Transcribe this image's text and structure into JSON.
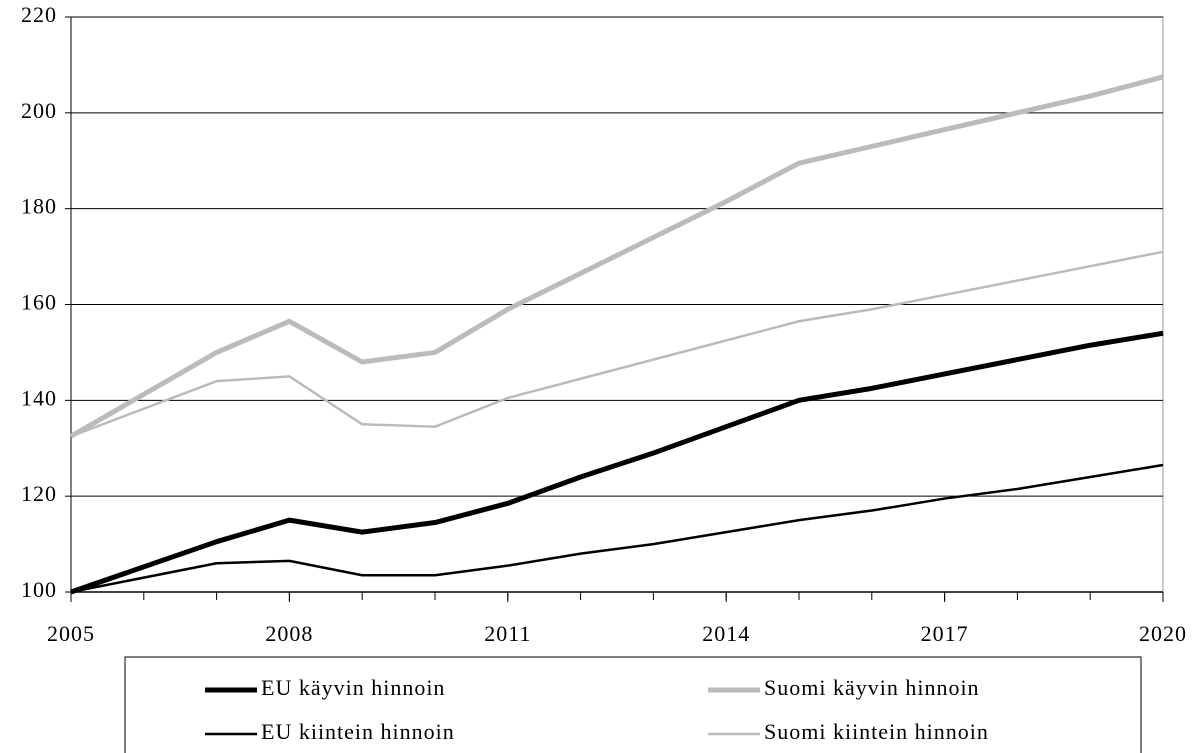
{
  "chart_data": {
    "type": "line",
    "x": [
      2005,
      2007,
      2008,
      2009,
      2010,
      2011,
      2012,
      2013,
      2014,
      2015,
      2016,
      2017,
      2018,
      2019,
      2020
    ],
    "series": [
      {
        "name": "EU käyvin hinnoin",
        "color": "#000000",
        "line_width": 5,
        "values": [
          100,
          110.5,
          115,
          112.5,
          114.5,
          118.5,
          124,
          129,
          134.5,
          140,
          142.5,
          145.5,
          148.5,
          151.5,
          154
        ]
      },
      {
        "name": "Suomi käyvin hinnoin",
        "color": "#bbbbbb",
        "line_width": 5,
        "values": [
          132.5,
          150,
          156.5,
          148,
          150,
          159,
          166.5,
          174,
          181.5,
          189.5,
          193,
          196.5,
          200,
          203.5,
          207.5
        ]
      },
      {
        "name": "EU kiintein hinnoin",
        "color": "#000000",
        "line_width": 2.5,
        "values": [
          100,
          106,
          106.5,
          103.5,
          103.5,
          105.5,
          108,
          110,
          112.5,
          115,
          117,
          119.5,
          121.5,
          124,
          126.5
        ]
      },
      {
        "name": "Suomi kiintein hinnoin",
        "color": "#bbbbbb",
        "line_width": 2.5,
        "values": [
          132.5,
          144,
          145,
          135,
          134.5,
          140.5,
          144.5,
          148.5,
          152.5,
          156.5,
          159,
          162,
          165,
          168,
          171
        ]
      }
    ],
    "xlim": [
      2005,
      2020
    ],
    "xticks": [
      2005,
      2008,
      2011,
      2014,
      2017,
      2020
    ],
    "xminor_ticks": [
      2005,
      2006,
      2007,
      2008,
      2009,
      2010,
      2011,
      2012,
      2013,
      2014,
      2015,
      2016,
      2017,
      2018,
      2019,
      2020
    ],
    "ylim": [
      100,
      220
    ],
    "yticks": [
      100,
      120,
      140,
      160,
      180,
      200,
      220
    ],
    "grid": true,
    "legend": "bottom"
  }
}
